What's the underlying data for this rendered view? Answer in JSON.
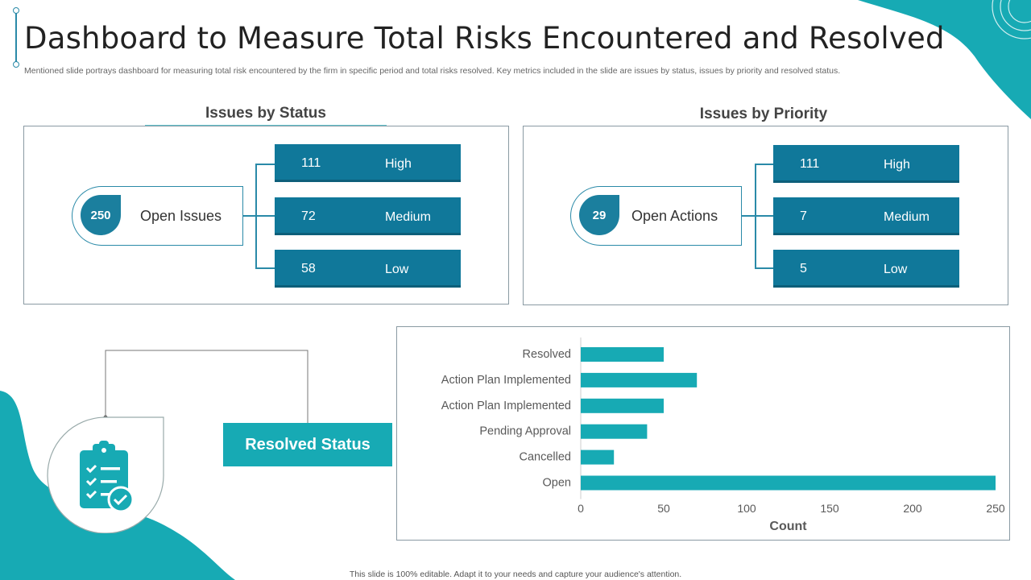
{
  "header": {
    "title": "Dashboard to Measure Total Risks Encountered and Resolved",
    "subtitle": "Mentioned slide portrays dashboard for measuring total risk encountered by the firm in specific period and total risks resolved. Key metrics included in the slide are issues by status, issues by priority and resolved status."
  },
  "issues_by_status": {
    "title": "Issues by Status",
    "badge": "250",
    "label": "Open Issues",
    "rows": [
      {
        "value": "111",
        "label": "High"
      },
      {
        "value": "72",
        "label": "Medium"
      },
      {
        "value": "58",
        "label": "Low"
      }
    ]
  },
  "issues_by_priority": {
    "title": "Issues by Priority",
    "badge": "29",
    "label": "Open Actions",
    "rows": [
      {
        "value": "111",
        "label": "High"
      },
      {
        "value": "7",
        "label": "Medium"
      },
      {
        "value": "5",
        "label": "Low"
      }
    ]
  },
  "resolved_status": {
    "label": "Resolved Status",
    "icon": "clipboard-check-icon"
  },
  "chart_data": {
    "type": "bar",
    "orientation": "horizontal",
    "categories": [
      "Resolved",
      "Action Plan Implemented",
      "Action Plan Implemented",
      "Pending Approval",
      "Cancelled",
      "Open"
    ],
    "values": [
      50,
      70,
      50,
      40,
      20,
      250
    ],
    "xlabel": "Count",
    "ylabel": "",
    "xlim": [
      0,
      250
    ],
    "xticks": [
      0,
      50,
      100,
      150,
      200,
      250
    ],
    "bar_color": "#17aab4",
    "grid": false
  },
  "footer": {
    "text": "This slide is 100% editable. Adapt it to your needs and capture your audience's attention."
  },
  "colors": {
    "teal": "#17aab4",
    "dark_teal": "#10789a",
    "accent": "#2a8aa8"
  }
}
